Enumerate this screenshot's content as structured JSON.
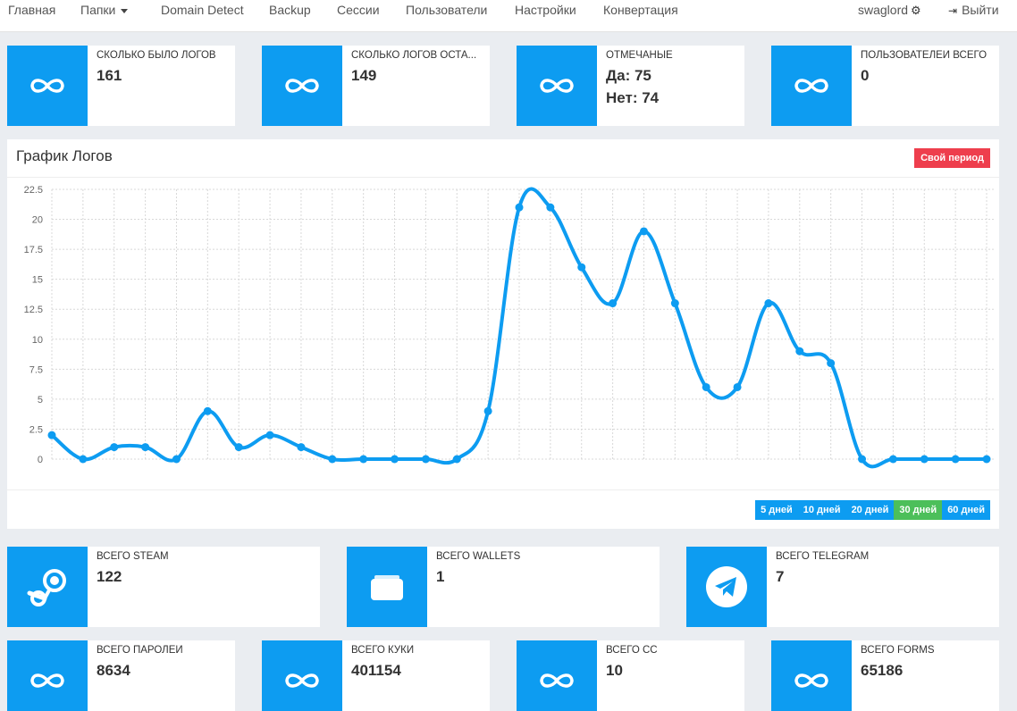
{
  "nav": {
    "links": [
      "Главная",
      "Папки",
      "Domain Detect",
      "Backup",
      "Сессии",
      "Пользователи",
      "Настройки",
      "Конвертация"
    ],
    "user": "swaglord",
    "logout": "Выйти"
  },
  "stats_top": [
    {
      "label": "Сколько было логов",
      "value": "161",
      "icon": "infinity-icon"
    },
    {
      "label": "Сколько логов оста...",
      "value": "149",
      "icon": "infinity-icon"
    },
    {
      "label": "Отмечаные",
      "value": "Да: 75",
      "value2": "Нет: 74",
      "icon": "infinity-icon"
    },
    {
      "label": "Пользователей всего",
      "value": "0",
      "icon": "infinity-icon"
    }
  ],
  "chart_panel": {
    "title": "График Логов",
    "period_button": "Свой период",
    "ranges": [
      "5 дней",
      "10 дней",
      "20 дней",
      "30 дней",
      "60 дней"
    ],
    "active_range": "30 дней"
  },
  "chart_data": {
    "type": "line",
    "title": "График Логов",
    "ylim": [
      0,
      22.5
    ],
    "yticks": [
      "22.5",
      "20",
      "17.5",
      "15",
      "12.5",
      "10",
      "7.5",
      "5",
      "2.5",
      "0"
    ],
    "grid": true,
    "series": [
      {
        "color": "#0d9cf1",
        "values": [
          2,
          0,
          1,
          1,
          0,
          4,
          1,
          2,
          1,
          0,
          0,
          0,
          0,
          0,
          4,
          21,
          21,
          16,
          13,
          19,
          13,
          6,
          6,
          13,
          9,
          8,
          0,
          0,
          0,
          0,
          0
        ]
      }
    ]
  },
  "stats_mid": [
    {
      "label": "Всего STEAM",
      "value": "122",
      "icon": "steam-icon"
    },
    {
      "label": "Всего WALLETS",
      "value": "1",
      "icon": "wallet-icon"
    },
    {
      "label": "Всего TELEGRAM",
      "value": "7",
      "icon": "telegram-icon"
    }
  ],
  "stats_bottom": [
    {
      "label": "Всего паролей",
      "value": "8634",
      "icon": "infinity-icon"
    },
    {
      "label": "Всего куки",
      "value": "401154",
      "icon": "infinity-icon"
    },
    {
      "label": "Всего CC",
      "value": "10",
      "icon": "infinity-icon"
    },
    {
      "label": "Всего FORMS",
      "value": "65186",
      "icon": "infinity-icon"
    }
  ],
  "colors": {
    "accent": "#0d9cf1",
    "danger": "#ee3e4d",
    "success": "#4cbf5a"
  }
}
